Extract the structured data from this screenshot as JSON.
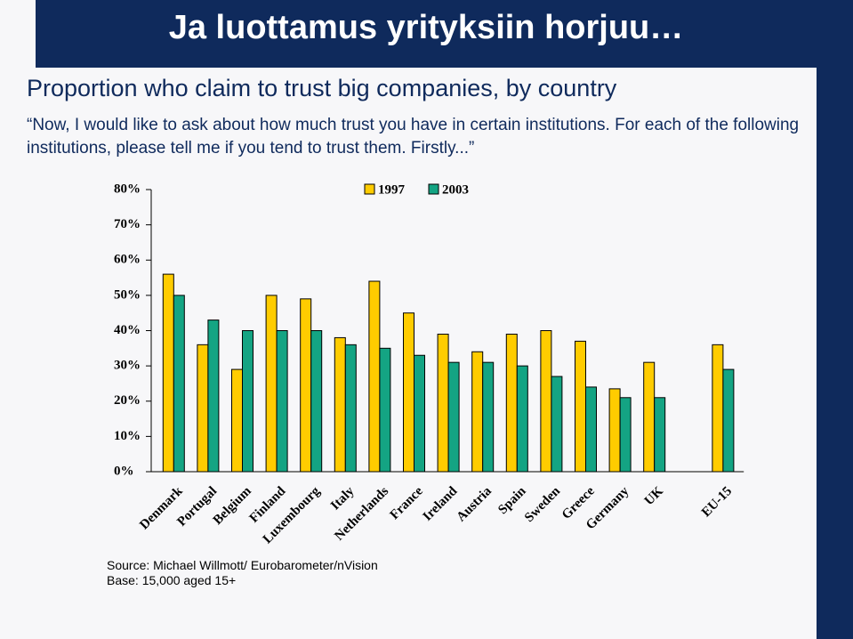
{
  "title": "Ja luottamus yrityksiin horjuu…",
  "chart_data": {
    "type": "bar",
    "title": "Proportion who claim to trust big companies, by country",
    "subtitle": "“Now, I would like to ask about how much trust you have in certain institutions. For each of the following institutions, please tell me if you tend to trust them. Firstly...”",
    "categories": [
      "Denmark",
      "Portugal",
      "Belgium",
      "Finland",
      "Luxembourg",
      "Italy",
      "Netherlands",
      "France",
      "Ireland",
      "Austria",
      "Spain",
      "Sweden",
      "Greece",
      "Germany",
      "UK",
      null,
      "EU-15"
    ],
    "series": [
      {
        "name": "1997",
        "color": "#ffcc00",
        "values": [
          56,
          36,
          29,
          50,
          49,
          38,
          54,
          45,
          39,
          34,
          39,
          40,
          37,
          23.5,
          31,
          null,
          36
        ]
      },
      {
        "name": "2003",
        "color": "#14a483",
        "values": [
          50,
          43,
          40,
          40,
          40,
          36,
          35,
          33,
          31,
          31,
          30,
          27,
          24,
          21,
          21,
          null,
          29
        ]
      }
    ],
    "ylim": [
      0,
      80
    ],
    "yticks": [
      {
        "value": 0,
        "label": "0%"
      },
      {
        "value": 10,
        "label": "10%"
      },
      {
        "value": 20,
        "label": "20%"
      },
      {
        "value": 30,
        "label": "30%"
      },
      {
        "value": 40,
        "label": "40%"
      },
      {
        "value": 50,
        "label": "50%"
      },
      {
        "value": 60,
        "label": "60%"
      },
      {
        "value": 70,
        "label": "70%"
      },
      {
        "value": 80,
        "label": "80%"
      }
    ],
    "source": "Source: Michael Willmott/ Eurobarometer/nVision",
    "base": "Base: 15,000 aged 15+"
  }
}
